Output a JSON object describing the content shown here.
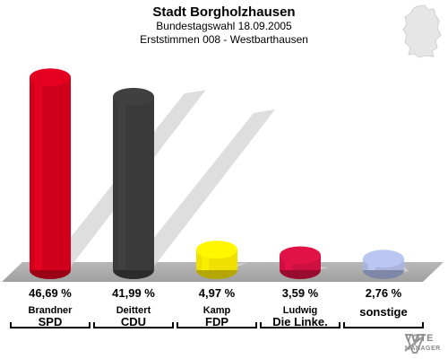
{
  "header": {
    "title": "Stadt Borgholzhausen",
    "subtitle": "Bundestagswahl 18.09.2005",
    "subtitle2": "Erststimmen 008 - Westbarthausen"
  },
  "chart_data": {
    "type": "bar",
    "title": "Stadt Borgholzhausen",
    "categories": [
      "SPD",
      "CDU",
      "FDP",
      "Die Linke.",
      "sonstige"
    ],
    "candidates": [
      "Brandner",
      "Deittert",
      "Kamp",
      "Ludwig",
      ""
    ],
    "values": [
      46.69,
      41.99,
      4.97,
      3.59,
      2.76
    ],
    "value_labels": [
      "46,69 %",
      "41,99 %",
      "4,97 %",
      "3,59 %",
      "2,76 %"
    ],
    "colors": [
      "#d0001c",
      "#3a3a3a",
      "#f0e000",
      "#cc1040",
      "#a8b4dc"
    ],
    "ylim": [
      0,
      50
    ],
    "grid": false
  },
  "logo": {
    "line1": "VOTE",
    "line2": "MANAGER"
  }
}
